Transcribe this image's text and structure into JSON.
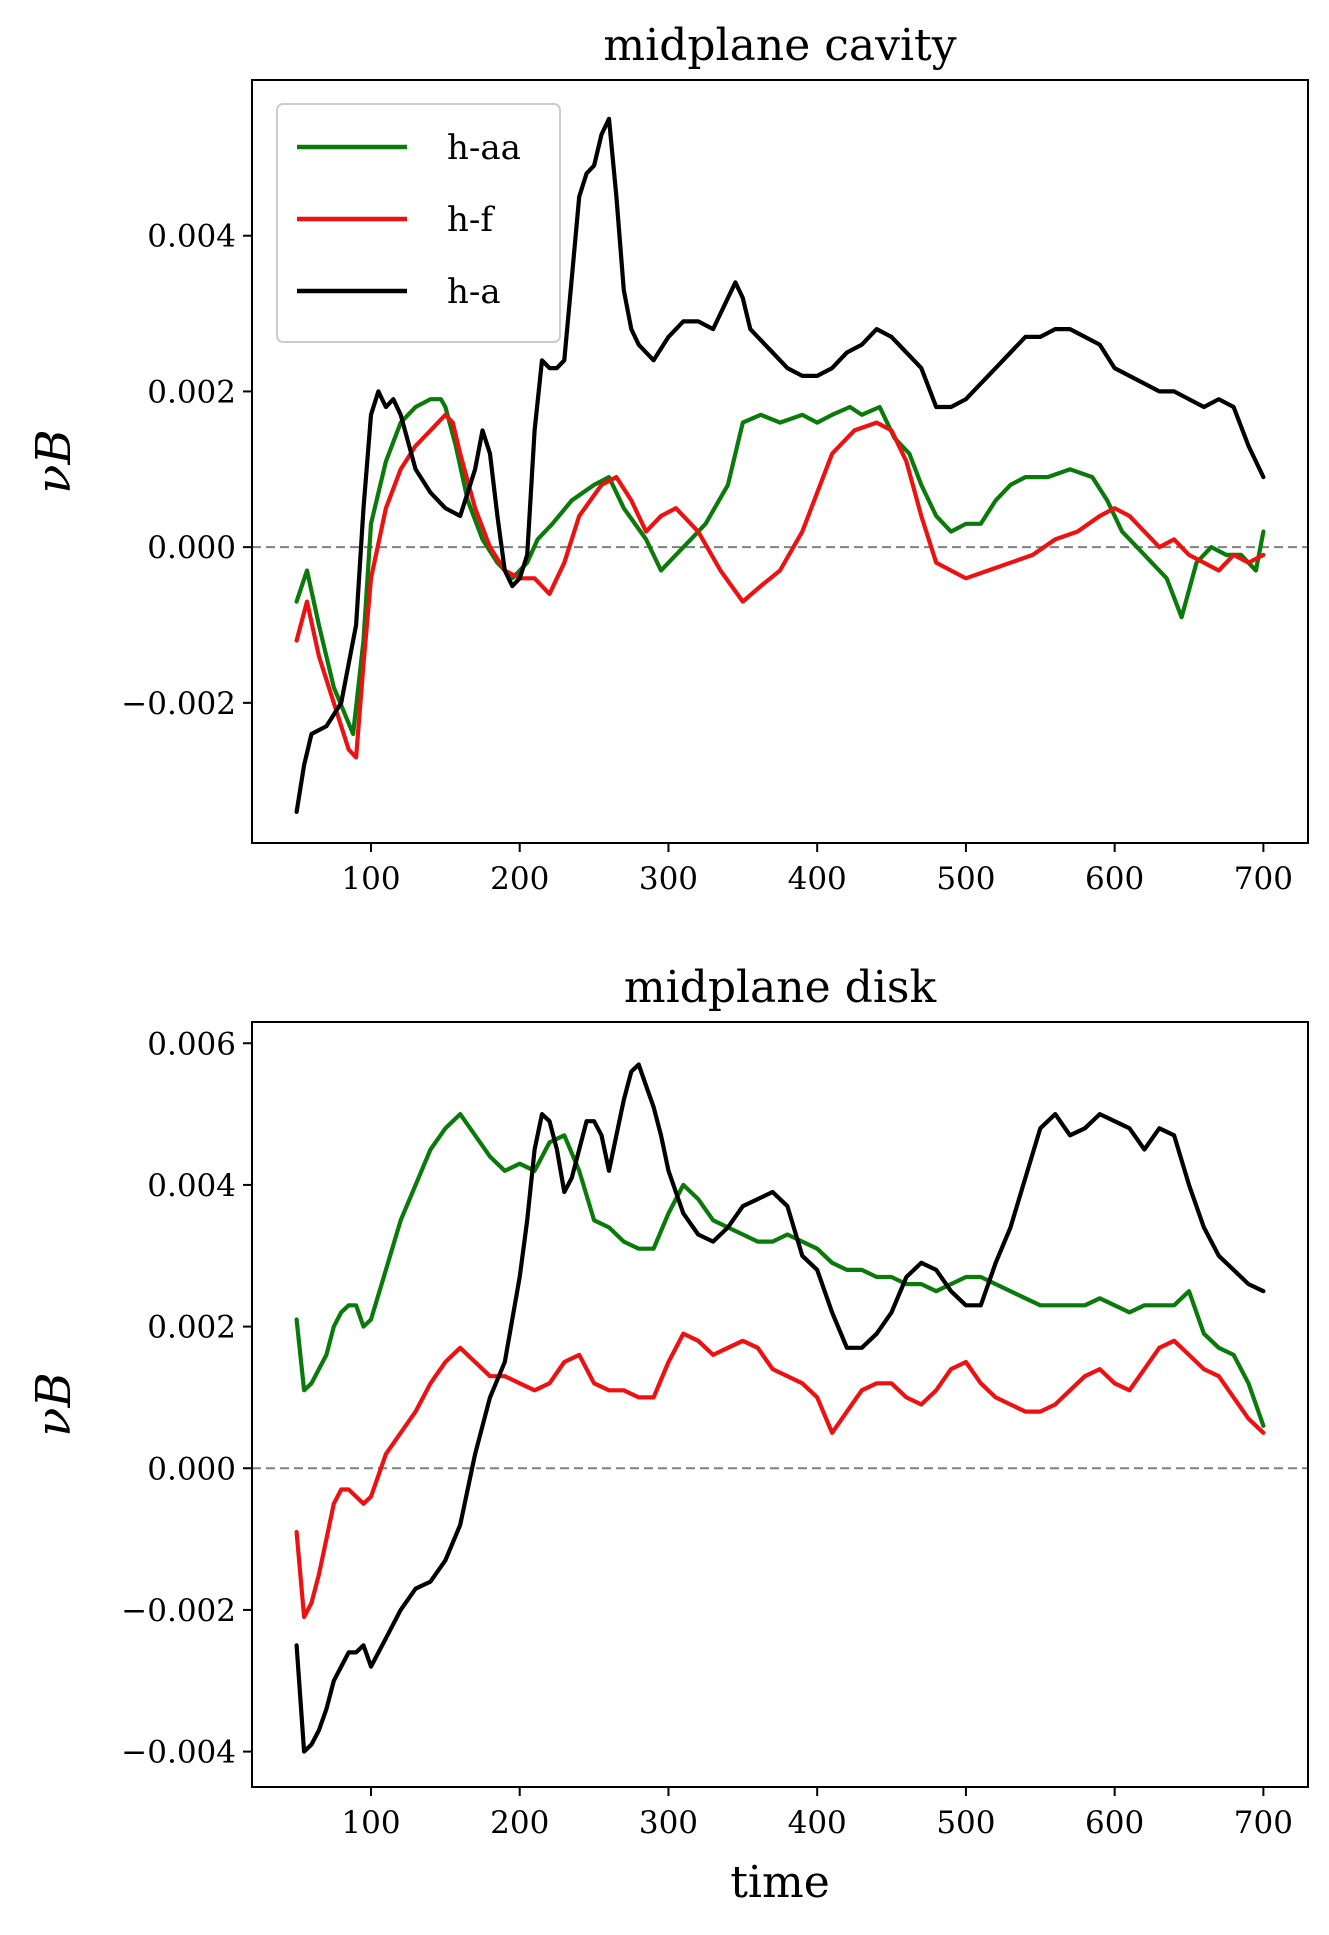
{
  "chart_data": [
    {
      "type": "line",
      "title": "midplane cavity",
      "xlabel": "",
      "ylabel": "νB",
      "xlim": [
        20,
        730
      ],
      "ylim": [
        -0.0038,
        0.006
      ],
      "xticks": [
        100,
        200,
        300,
        400,
        500,
        600,
        700
      ],
      "xtick_labels": [
        "100",
        "200",
        "300",
        "400",
        "500",
        "600",
        "700"
      ],
      "yticks": [
        -0.002,
        0.0,
        0.002,
        0.004
      ],
      "ytick_labels": [
        "−0.002",
        "0.000",
        "0.002",
        "0.004"
      ],
      "reference_line": {
        "y": 0.0,
        "style": "dashed",
        "color": "#808080"
      },
      "legend": {
        "placement": "top-left",
        "entries": [
          "h-aa",
          "h-f",
          "h-a"
        ]
      },
      "series": [
        {
          "name": "h-aa",
          "color": "#0a7a0a",
          "x": [
            50,
            57,
            65,
            75,
            88,
            95,
            100,
            110,
            120,
            130,
            140,
            147,
            150,
            157,
            165,
            175,
            185,
            195,
            205,
            212,
            222,
            235,
            250,
            260,
            270,
            285,
            295,
            305,
            315,
            325,
            340,
            350,
            362,
            375,
            390,
            400,
            410,
            422,
            430,
            442,
            452,
            462,
            470,
            480,
            490,
            500,
            510,
            520,
            530,
            540,
            555,
            570,
            585,
            595,
            605,
            615,
            625,
            635,
            645,
            655,
            665,
            675,
            685,
            695,
            700
          ],
          "y": [
            -0.0007,
            -0.0003,
            -0.001,
            -0.0018,
            -0.0024,
            -0.0012,
            0.0003,
            0.0011,
            0.0016,
            0.0018,
            0.0019,
            0.0019,
            0.0018,
            0.0013,
            0.0006,
            0.0001,
            -0.0002,
            -0.0004,
            -0.0002,
            0.0001,
            0.0003,
            0.0006,
            0.0008,
            0.0009,
            0.0005,
            0.0001,
            -0.0003,
            -0.0001,
            0.0001,
            0.0003,
            0.0008,
            0.0016,
            0.0017,
            0.0016,
            0.0017,
            0.0016,
            0.0017,
            0.0018,
            0.0017,
            0.0018,
            0.0014,
            0.0012,
            0.0008,
            0.0004,
            0.0002,
            0.0003,
            0.0003,
            0.0006,
            0.0008,
            0.0009,
            0.0009,
            0.001,
            0.0009,
            0.0006,
            0.0002,
            0.0,
            -0.0002,
            -0.0004,
            -0.0009,
            -0.0002,
            0.0,
            -0.0001,
            -0.0001,
            -0.0003,
            0.0002
          ]
        },
        {
          "name": "h-f",
          "color": "#ee1111",
          "x": [
            50,
            57,
            65,
            75,
            85,
            90,
            95,
            100,
            110,
            120,
            130,
            140,
            150,
            155,
            160,
            170,
            180,
            190,
            200,
            210,
            220,
            230,
            240,
            255,
            265,
            275,
            285,
            295,
            305,
            320,
            335,
            350,
            362,
            375,
            390,
            400,
            410,
            425,
            440,
            450,
            460,
            470,
            480,
            490,
            500,
            515,
            530,
            545,
            560,
            575,
            590,
            600,
            610,
            620,
            630,
            640,
            650,
            660,
            670,
            680,
            690,
            700
          ],
          "y": [
            -0.0012,
            -0.0007,
            -0.0014,
            -0.002,
            -0.0026,
            -0.0027,
            -0.0015,
            -0.0004,
            0.0005,
            0.001,
            0.0013,
            0.0015,
            0.0017,
            0.0016,
            0.0012,
            0.0005,
            0.0,
            -0.0003,
            -0.0004,
            -0.0004,
            -0.0006,
            -0.0002,
            0.0004,
            0.0008,
            0.0009,
            0.0006,
            0.0002,
            0.0004,
            0.0005,
            0.0002,
            -0.0003,
            -0.0007,
            -0.0005,
            -0.0003,
            0.0002,
            0.0007,
            0.0012,
            0.0015,
            0.0016,
            0.0015,
            0.0011,
            0.0004,
            -0.0002,
            -0.0003,
            -0.0004,
            -0.0003,
            -0.0002,
            -0.0001,
            0.0001,
            0.0002,
            0.0004,
            0.0005,
            0.0004,
            0.0002,
            0.0,
            0.0001,
            -0.0001,
            -0.0002,
            -0.0003,
            -0.0001,
            -0.0002,
            -0.0001
          ]
        },
        {
          "name": "h-a",
          "color": "#000000",
          "x": [
            50,
            55,
            60,
            70,
            80,
            90,
            95,
            100,
            105,
            110,
            115,
            120,
            130,
            140,
            150,
            160,
            170,
            175,
            180,
            185,
            190,
            195,
            200,
            205,
            210,
            215,
            220,
            225,
            230,
            240,
            245,
            250,
            255,
            260,
            265,
            270,
            275,
            280,
            290,
            300,
            310,
            320,
            330,
            340,
            345,
            350,
            355,
            360,
            370,
            380,
            390,
            400,
            410,
            420,
            430,
            440,
            450,
            460,
            470,
            480,
            490,
            500,
            510,
            520,
            530,
            540,
            550,
            560,
            570,
            580,
            590,
            600,
            610,
            620,
            630,
            640,
            650,
            660,
            670,
            680,
            690,
            700
          ],
          "y": [
            -0.0034,
            -0.0028,
            -0.0024,
            -0.0023,
            -0.002,
            -0.001,
            0.0005,
            0.0017,
            0.002,
            0.0018,
            0.0019,
            0.0017,
            0.001,
            0.0007,
            0.0005,
            0.0004,
            0.001,
            0.0015,
            0.0012,
            0.0004,
            -0.0003,
            -0.0005,
            -0.0004,
            -0.0001,
            0.0015,
            0.0024,
            0.0023,
            0.0023,
            0.0024,
            0.0045,
            0.0048,
            0.0049,
            0.0053,
            0.0055,
            0.0045,
            0.0033,
            0.0028,
            0.0026,
            0.0024,
            0.0027,
            0.0029,
            0.0029,
            0.0028,
            0.0032,
            0.0034,
            0.0032,
            0.0028,
            0.0027,
            0.0025,
            0.0023,
            0.0022,
            0.0022,
            0.0023,
            0.0025,
            0.0026,
            0.0028,
            0.0027,
            0.0025,
            0.0023,
            0.0018,
            0.0018,
            0.0019,
            0.0021,
            0.0023,
            0.0025,
            0.0027,
            0.0027,
            0.0028,
            0.0028,
            0.0027,
            0.0026,
            0.0023,
            0.0022,
            0.0021,
            0.002,
            0.002,
            0.0019,
            0.0018,
            0.0019,
            0.0018,
            0.0013,
            0.0009
          ]
        }
      ]
    },
    {
      "type": "line",
      "title": "midplane disk",
      "xlabel": "time",
      "ylabel": "νB",
      "xlim": [
        20,
        730
      ],
      "ylim": [
        -0.0045,
        0.0063
      ],
      "xticks": [
        100,
        200,
        300,
        400,
        500,
        600,
        700
      ],
      "xtick_labels": [
        "100",
        "200",
        "300",
        "400",
        "500",
        "600",
        "700"
      ],
      "yticks": [
        -0.004,
        -0.002,
        0.0,
        0.002,
        0.004,
        0.006
      ],
      "ytick_labels": [
        "−0.004",
        "−0.002",
        "0.000",
        "0.002",
        "0.004",
        "0.006"
      ],
      "reference_line": {
        "y": 0.0,
        "style": "dashed",
        "color": "#808080"
      },
      "series": [
        {
          "name": "h-aa",
          "color": "#0a7a0a",
          "x": [
            50,
            55,
            60,
            65,
            70,
            75,
            80,
            85,
            90,
            95,
            100,
            110,
            120,
            130,
            140,
            150,
            160,
            170,
            180,
            190,
            200,
            210,
            220,
            230,
            240,
            250,
            260,
            270,
            280,
            290,
            300,
            310,
            320,
            330,
            340,
            350,
            360,
            370,
            380,
            390,
            400,
            410,
            420,
            430,
            440,
            450,
            460,
            470,
            480,
            490,
            500,
            510,
            520,
            530,
            540,
            550,
            560,
            570,
            580,
            590,
            600,
            610,
            620,
            630,
            640,
            650,
            660,
            670,
            680,
            690,
            700
          ],
          "y": [
            0.0021,
            0.0011,
            0.0012,
            0.0014,
            0.0016,
            0.002,
            0.0022,
            0.0023,
            0.0023,
            0.002,
            0.0021,
            0.0028,
            0.0035,
            0.004,
            0.0045,
            0.0048,
            0.005,
            0.0047,
            0.0044,
            0.0042,
            0.0043,
            0.0042,
            0.0046,
            0.0047,
            0.0042,
            0.0035,
            0.0034,
            0.0032,
            0.0031,
            0.0031,
            0.0036,
            0.004,
            0.0038,
            0.0035,
            0.0034,
            0.0033,
            0.0032,
            0.0032,
            0.0033,
            0.0032,
            0.0031,
            0.0029,
            0.0028,
            0.0028,
            0.0027,
            0.0027,
            0.0026,
            0.0026,
            0.0025,
            0.0026,
            0.0027,
            0.0027,
            0.0026,
            0.0025,
            0.0024,
            0.0023,
            0.0023,
            0.0023,
            0.0023,
            0.0024,
            0.0023,
            0.0022,
            0.0023,
            0.0023,
            0.0023,
            0.0025,
            0.0019,
            0.0017,
            0.0016,
            0.0012,
            0.0006
          ]
        },
        {
          "name": "h-f",
          "color": "#ee1111",
          "x": [
            50,
            55,
            60,
            65,
            70,
            75,
            80,
            85,
            90,
            95,
            100,
            110,
            120,
            130,
            140,
            150,
            160,
            170,
            180,
            190,
            200,
            210,
            220,
            230,
            240,
            250,
            260,
            270,
            280,
            290,
            300,
            310,
            320,
            330,
            340,
            350,
            360,
            370,
            380,
            390,
            400,
            410,
            420,
            430,
            440,
            450,
            460,
            470,
            480,
            490,
            500,
            510,
            520,
            530,
            540,
            550,
            560,
            570,
            580,
            590,
            600,
            610,
            620,
            630,
            640,
            650,
            660,
            670,
            680,
            690,
            700
          ],
          "y": [
            -0.0009,
            -0.0021,
            -0.0019,
            -0.0015,
            -0.001,
            -0.0005,
            -0.0003,
            -0.0003,
            -0.0004,
            -0.0005,
            -0.0004,
            0.0002,
            0.0005,
            0.0008,
            0.0012,
            0.0015,
            0.0017,
            0.0015,
            0.0013,
            0.0013,
            0.0012,
            0.0011,
            0.0012,
            0.0015,
            0.0016,
            0.0012,
            0.0011,
            0.0011,
            0.001,
            0.001,
            0.0015,
            0.0019,
            0.0018,
            0.0016,
            0.0017,
            0.0018,
            0.0017,
            0.0014,
            0.0013,
            0.0012,
            0.001,
            0.0005,
            0.0008,
            0.0011,
            0.0012,
            0.0012,
            0.001,
            0.0009,
            0.0011,
            0.0014,
            0.0015,
            0.0012,
            0.001,
            0.0009,
            0.0008,
            0.0008,
            0.0009,
            0.0011,
            0.0013,
            0.0014,
            0.0012,
            0.0011,
            0.0014,
            0.0017,
            0.0018,
            0.0016,
            0.0014,
            0.0013,
            0.001,
            0.0007,
            0.0005
          ]
        },
        {
          "name": "h-a",
          "color": "#000000",
          "x": [
            50,
            55,
            60,
            65,
            70,
            75,
            80,
            85,
            90,
            95,
            100,
            110,
            120,
            130,
            140,
            150,
            160,
            170,
            180,
            190,
            200,
            205,
            210,
            215,
            220,
            225,
            230,
            235,
            240,
            245,
            250,
            255,
            260,
            265,
            270,
            275,
            280,
            285,
            290,
            295,
            300,
            310,
            320,
            330,
            340,
            350,
            360,
            370,
            380,
            390,
            400,
            410,
            420,
            430,
            440,
            450,
            460,
            470,
            480,
            490,
            500,
            510,
            520,
            530,
            540,
            550,
            560,
            570,
            580,
            590,
            600,
            610,
            620,
            630,
            640,
            650,
            660,
            670,
            680,
            690,
            700
          ],
          "y": [
            -0.0025,
            -0.004,
            -0.0039,
            -0.0037,
            -0.0034,
            -0.003,
            -0.0028,
            -0.0026,
            -0.0026,
            -0.0025,
            -0.0028,
            -0.0024,
            -0.002,
            -0.0017,
            -0.0016,
            -0.0013,
            -0.0008,
            0.0002,
            0.001,
            0.0015,
            0.0027,
            0.0035,
            0.0045,
            0.005,
            0.0049,
            0.0045,
            0.0039,
            0.0041,
            0.0045,
            0.0049,
            0.0049,
            0.0047,
            0.0042,
            0.0047,
            0.0052,
            0.0056,
            0.0057,
            0.0054,
            0.0051,
            0.0047,
            0.0042,
            0.0036,
            0.0033,
            0.0032,
            0.0034,
            0.0037,
            0.0038,
            0.0039,
            0.0037,
            0.003,
            0.0028,
            0.0022,
            0.0017,
            0.0017,
            0.0019,
            0.0022,
            0.0027,
            0.0029,
            0.0028,
            0.0025,
            0.0023,
            0.0023,
            0.0029,
            0.0034,
            0.0041,
            0.0048,
            0.005,
            0.0047,
            0.0048,
            0.005,
            0.0049,
            0.0048,
            0.0045,
            0.0048,
            0.0047,
            0.004,
            0.0034,
            0.003,
            0.0028,
            0.0026,
            0.0025
          ]
        }
      ]
    }
  ]
}
